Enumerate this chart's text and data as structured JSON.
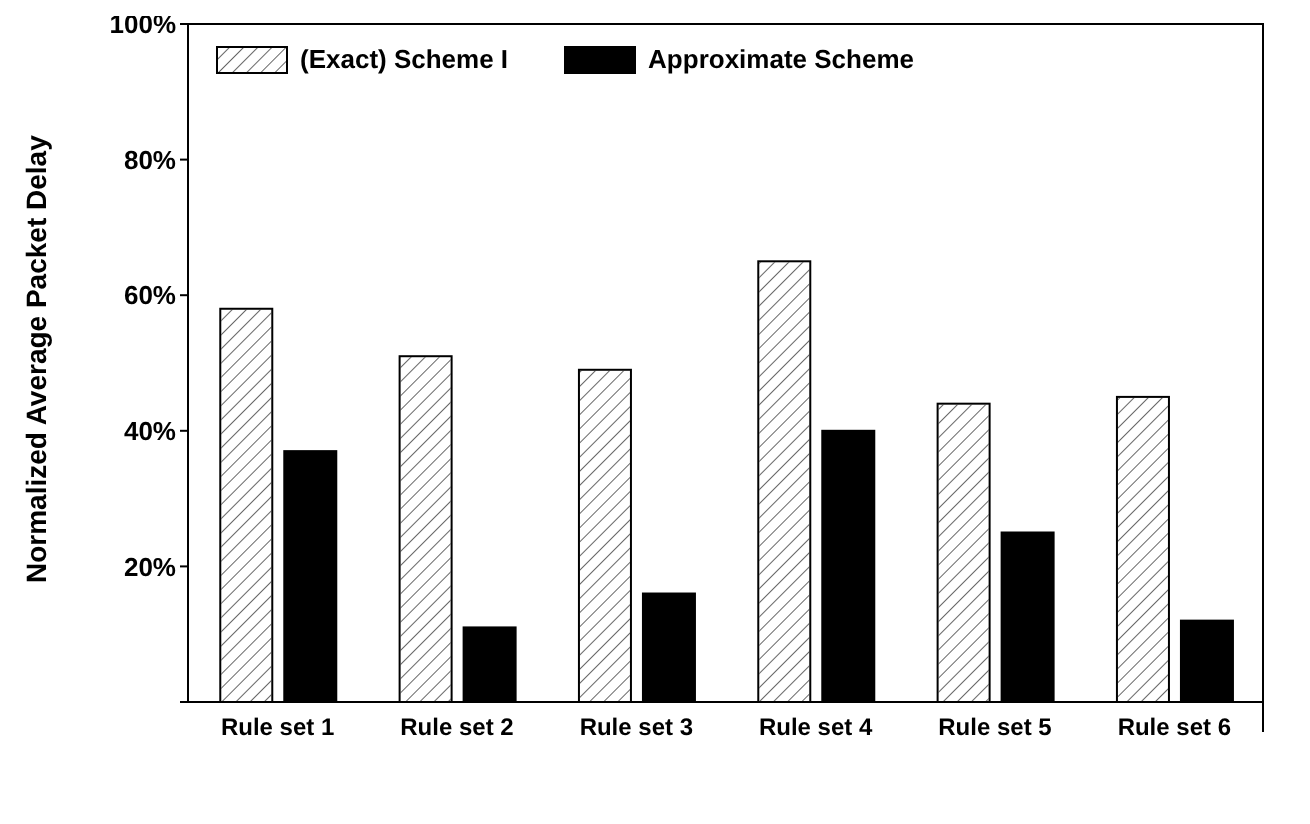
{
  "chart_data": {
    "type": "bar",
    "ylabel": "Normalized Average Packet Delay",
    "categories": [
      "Rule set 1",
      "Rule set 2",
      "Rule set 3",
      "Rule set 4",
      "Rule set 5",
      "Rule set 6"
    ],
    "series": [
      {
        "name": "(Exact) Scheme I",
        "color": "#ffffff",
        "values": [
          58,
          51,
          49,
          65,
          44,
          45
        ]
      },
      {
        "name": "Approximate Scheme",
        "color": "#000000",
        "values": [
          37,
          11,
          16,
          40,
          25,
          12
        ]
      }
    ],
    "ylim": [
      0,
      100
    ],
    "yticks": [
      {
        "value": 0,
        "label": null
      },
      {
        "value": 20,
        "label": "20%"
      },
      {
        "value": 40,
        "label": "40%"
      },
      {
        "value": 60,
        "label": "60%"
      },
      {
        "value": 80,
        "label": "80%"
      },
      {
        "value": 100,
        "label": "100%"
      }
    ],
    "grid": false,
    "legend": "top left"
  }
}
